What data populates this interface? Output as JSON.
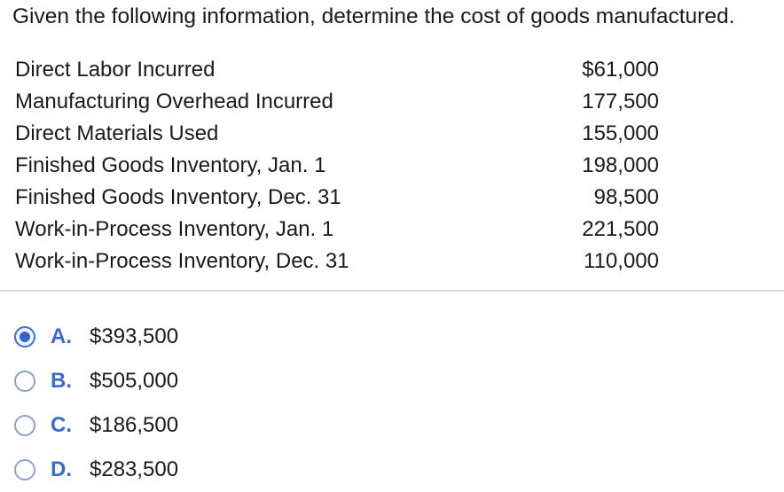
{
  "question": {
    "prompt": "Given the following information, determine the cost of goods manufactured."
  },
  "data_table": {
    "rows": [
      {
        "label": "Direct Labor Incurred",
        "value": "$61,000"
      },
      {
        "label": "Manufacturing Overhead Incurred",
        "value": "177,500"
      },
      {
        "label": "Direct Materials Used",
        "value": "155,000"
      },
      {
        "label": "Finished Goods Inventory, Jan. 1",
        "value": "198,000"
      },
      {
        "label": "Finished Goods Inventory, Dec. 31",
        "value": "98,500"
      },
      {
        "label": "Work-in-Process Inventory, Jan. 1",
        "value": "221,500"
      },
      {
        "label": "Work-in-Process Inventory, Dec. 31",
        "value": "110,000"
      }
    ]
  },
  "options": [
    {
      "letter": "A.",
      "text": "$393,500",
      "selected": true
    },
    {
      "letter": "B.",
      "text": "$505,000",
      "selected": false
    },
    {
      "letter": "C.",
      "text": "$186,500",
      "selected": false
    },
    {
      "letter": "D.",
      "text": "$283,500",
      "selected": false
    }
  ],
  "colors": {
    "accent": "#3c6ac9",
    "divider": "#d6d6de",
    "text": "#1a1a1a"
  }
}
